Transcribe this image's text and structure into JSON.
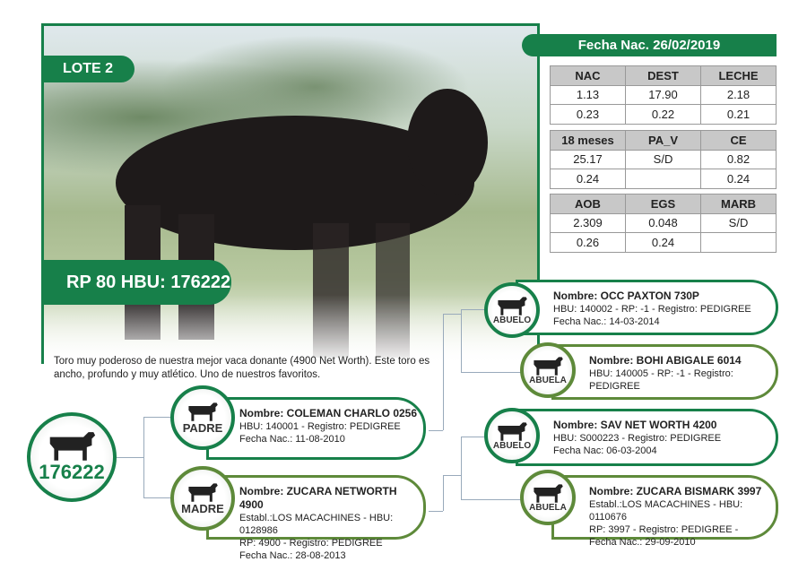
{
  "lote": "LOTE 2",
  "rp_hbu": "RP 80 HBU: 176222",
  "description": "Toro muy poderoso de nuestra mejor vaca donante (4900 Net Worth). Este toro es ancho, profundo y muy atlético. Uno de nuestros favoritos.",
  "fecha_nac": "Fecha Nac. 26/02/2019",
  "tables": [
    {
      "headers": [
        "NAC",
        "DEST",
        "LECHE"
      ],
      "rows": [
        [
          "1.13",
          "17.90",
          "2.18"
        ],
        [
          "0.23",
          "0.22",
          "0.21"
        ]
      ]
    },
    {
      "headers": [
        "18 meses",
        "PA_V",
        "CE"
      ],
      "rows": [
        [
          "25.17",
          "S/D",
          "0.82"
        ],
        [
          "0.24",
          "",
          "0.24"
        ]
      ]
    },
    {
      "headers": [
        "AOB",
        "EGS",
        "MARB"
      ],
      "rows": [
        [
          "2.309",
          "0.048",
          "S/D"
        ],
        [
          "0.26",
          "0.24",
          ""
        ]
      ]
    }
  ],
  "animal_id": "176222",
  "colors": {
    "green": "#17804a",
    "olive": "#5e8a3a"
  },
  "pedigree": {
    "padre": {
      "role": "PADRE",
      "name": "Nombre: COLEMAN CHARLO 0256",
      "lines": [
        "HBU: 140001 - Registro: PEDIGREE",
        "Fecha Nac.: 11-08-2010"
      ]
    },
    "madre": {
      "role": "MADRE",
      "name": "Nombre: ZUCARA NETWORTH 4900",
      "lines": [
        "Establ.:LOS MACACHINES - HBU: 0128986",
        "RP:  4900 - Registro: PEDIGREE",
        "Fecha Nac.: 28-08-2013"
      ]
    },
    "abuelo_p": {
      "role": "ABUELO",
      "name": "Nombre: OCC PAXTON 730P",
      "lines": [
        "HBU: 140002 - RP: -1 - Registro: PEDIGREE",
        "Fecha Nac.: 14-03-2014"
      ]
    },
    "abuela_p": {
      "role": "ABUELA",
      "name": "Nombre: BOHI ABIGALE 6014",
      "lines": [
        "HBU: 140005 - RP: -1 - Registro: PEDIGREE"
      ]
    },
    "abuelo_m": {
      "role": "ABUELO",
      "name": "Nombre: SAV NET WORTH 4200",
      "lines": [
        "HBU: S000223 - Registro: PEDIGREE",
        "Fecha Nac: 06-03-2004"
      ]
    },
    "abuela_m": {
      "role": "ABUELA",
      "name": "Nombre: ZUCARA BISMARK 3997",
      "lines": [
        "Establ.:LOS MACACHINES - HBU: 0110676",
        "RP: 3997 - Registro: PEDIGREE -",
        "Fecha Nac.: 29-09-2010"
      ]
    }
  }
}
